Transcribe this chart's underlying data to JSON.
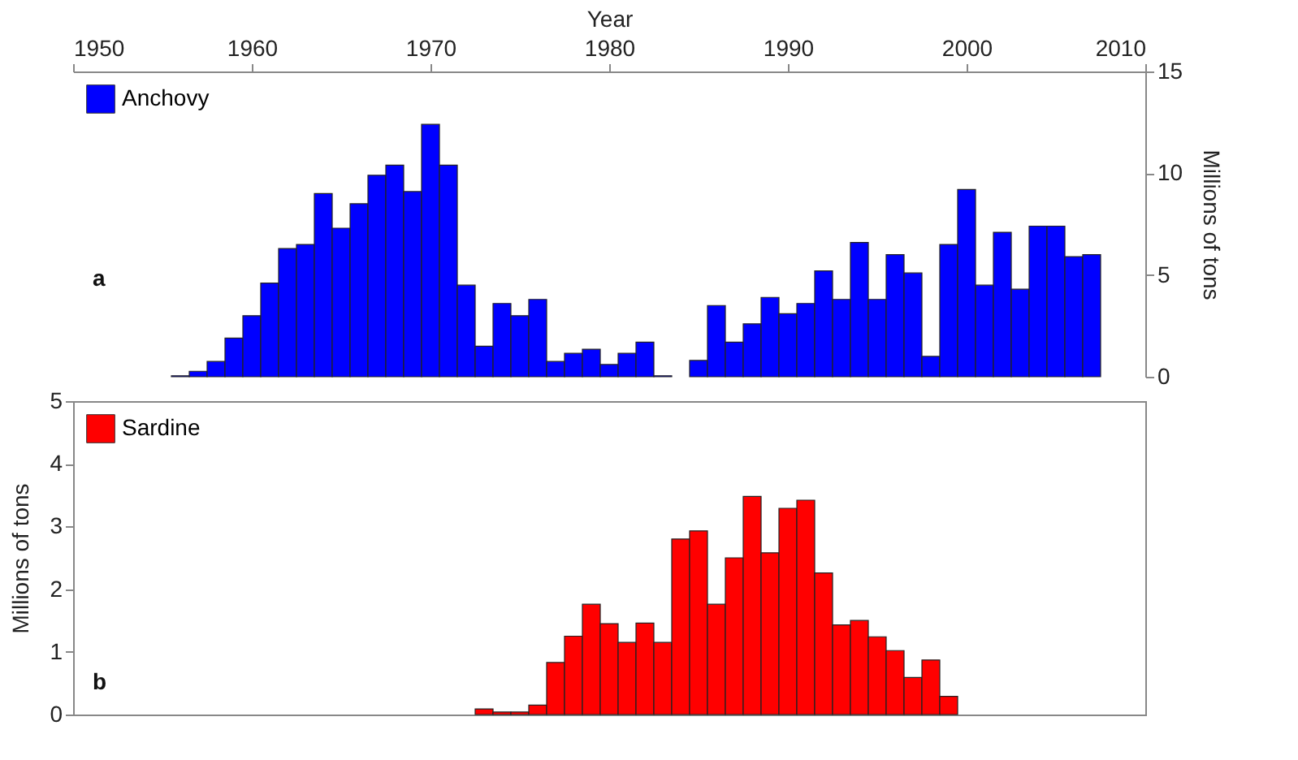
{
  "chart_data": [
    {
      "type": "bar",
      "xlabel": "Year",
      "xlim": [
        1950,
        2010
      ],
      "xticks": [
        1950,
        1960,
        1970,
        1980,
        1990,
        2000,
        2010
      ],
      "y2lim": [
        0,
        15
      ],
      "y2ticks": [
        0,
        5,
        10,
        15
      ],
      "y2label": "Millions of tons",
      "legend": "top left",
      "grid": false,
      "annotations": [
        "a"
      ],
      "series": [
        {
          "name": "Anchovy",
          "color": "#0000ff",
          "axis": "y2",
          "x": [
            1956,
            1957,
            1958,
            1959,
            1960,
            1961,
            1962,
            1963,
            1964,
            1965,
            1966,
            1967,
            1968,
            1969,
            1970,
            1971,
            1972,
            1973,
            1974,
            1975,
            1976,
            1977,
            1978,
            1979,
            1980,
            1981,
            1982,
            1983,
            1985,
            1986,
            1987,
            1988,
            1989,
            1990,
            1991,
            1992,
            1993,
            1994,
            1995,
            1996,
            1997,
            1998,
            1999,
            2000,
            2001,
            2002,
            2003,
            2004,
            2005,
            2006,
            2007
          ],
          "values": [
            0.05,
            0.27,
            0.75,
            1.9,
            3.0,
            4.6,
            6.3,
            6.5,
            9.0,
            7.3,
            8.5,
            9.9,
            10.4,
            9.1,
            12.4,
            10.4,
            4.5,
            1.5,
            3.6,
            3.0,
            3.8,
            0.75,
            1.15,
            1.35,
            0.6,
            1.15,
            1.7,
            0.05,
            0.8,
            3.5,
            1.7,
            2.6,
            3.9,
            3.1,
            3.6,
            5.2,
            3.8,
            6.6,
            3.8,
            6.0,
            5.1,
            1.0,
            6.5,
            9.2,
            4.5,
            7.1,
            4.3,
            7.4,
            7.4,
            5.9,
            6.0
          ]
        }
      ]
    },
    {
      "type": "bar",
      "xlim": [
        1950,
        2010
      ],
      "ylim": [
        0,
        5
      ],
      "yticks": [
        0,
        1,
        2,
        3,
        4,
        5
      ],
      "ylabel": "Millions of tons",
      "tick_labels": "y",
      "legend": "top left",
      "grid": false,
      "annotations": [
        "b"
      ],
      "series": [
        {
          "name": "Sardine",
          "color": "#ff0000",
          "x": [
            1973,
            1974,
            1975,
            1976,
            1977,
            1978,
            1979,
            1980,
            1981,
            1982,
            1983,
            1984,
            1985,
            1986,
            1987,
            1988,
            1989,
            1990,
            1991,
            1992,
            1993,
            1994,
            1995,
            1996,
            1997,
            1998,
            1999
          ],
          "values": [
            0.09,
            0.04,
            0.04,
            0.15,
            0.83,
            1.25,
            1.76,
            1.45,
            1.15,
            1.46,
            1.15,
            2.8,
            2.93,
            1.76,
            2.5,
            3.48,
            2.58,
            3.29,
            3.42,
            2.26,
            1.43,
            1.5,
            1.24,
            1.02,
            0.59,
            0.87,
            0.29
          ]
        }
      ]
    }
  ]
}
